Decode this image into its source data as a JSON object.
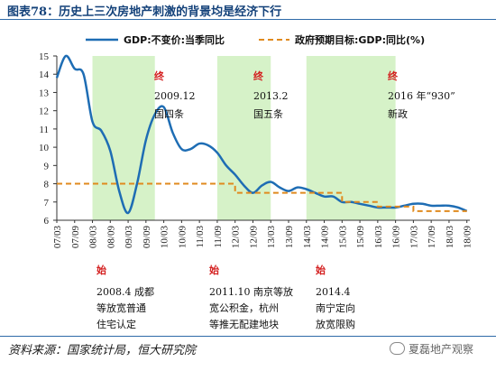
{
  "title": "图表78：历史上三次房地产刺激的背景均是经济下行",
  "source": "资料来源：国家统计局，恒大研究院",
  "watermark": "夏磊地产观察",
  "colors": {
    "gdp_line": "#1e6db4",
    "target_line": "#e08a1e",
    "shade": "#d6f2c8",
    "title": "#14427a",
    "accent_red": "#d42020"
  },
  "chart_data": {
    "type": "line",
    "ylim": [
      6,
      15
    ],
    "yticks": [
      6,
      7,
      8,
      9,
      10,
      11,
      12,
      13,
      14,
      15
    ],
    "grid": false,
    "legend_position": "top",
    "x_tick_labels": [
      "07/03",
      "07/09",
      "08/03",
      "08/09",
      "09/03",
      "09/09",
      "10/03",
      "10/09",
      "11/03",
      "11/09",
      "12/03",
      "12/09",
      "13/03",
      "13/09",
      "14/03",
      "14/09",
      "15/03",
      "15/09",
      "16/03",
      "16/09",
      "17/03",
      "17/09",
      "18/03",
      "18/09"
    ],
    "series": [
      {
        "name": "GDP:不变价:当季同比",
        "style": "solid",
        "x": [
          "07/03",
          "07/06",
          "07/09",
          "07/12",
          "08/03",
          "08/06",
          "08/09",
          "08/12",
          "09/03",
          "09/06",
          "09/09",
          "09/12",
          "10/03",
          "10/06",
          "10/09",
          "10/12",
          "11/03",
          "11/06",
          "11/09",
          "11/12",
          "12/03",
          "12/06",
          "12/09",
          "12/12",
          "13/03",
          "13/06",
          "13/09",
          "13/12",
          "14/03",
          "14/06",
          "14/09",
          "14/12",
          "15/03",
          "15/06",
          "15/09",
          "15/12",
          "16/03",
          "16/06",
          "16/09",
          "16/12",
          "17/03",
          "17/06",
          "17/09",
          "17/12",
          "18/03",
          "18/06",
          "18/09"
        ],
        "values": [
          13.8,
          15.0,
          14.3,
          14.0,
          11.4,
          10.9,
          9.8,
          7.6,
          6.4,
          8.0,
          10.4,
          11.8,
          12.2,
          10.8,
          9.9,
          9.9,
          10.2,
          10.1,
          9.7,
          9.0,
          8.5,
          7.9,
          7.5,
          7.9,
          8.1,
          7.8,
          7.6,
          7.8,
          7.7,
          7.5,
          7.3,
          7.3,
          7.0,
          7.0,
          6.9,
          6.8,
          6.7,
          6.7,
          6.7,
          6.8,
          6.9,
          6.9,
          6.8,
          6.8,
          6.8,
          6.7,
          6.5
        ]
      },
      {
        "name": "政府预期目标:GDP:同比(%)",
        "style": "dashed",
        "x": [
          "07/03",
          "08/03",
          "09/03",
          "10/03",
          "11/03",
          "11/12",
          "12/03",
          "13/03",
          "14/03",
          "14/12",
          "15/03",
          "15/12",
          "16/03",
          "16/12",
          "17/03",
          "17/12",
          "18/03",
          "18/09"
        ],
        "values": [
          8,
          8,
          8,
          8,
          8,
          8,
          7.5,
          7.5,
          7.5,
          7.5,
          7,
          7,
          6.75,
          6.75,
          6.5,
          6.5,
          6.5,
          6.5
        ]
      }
    ],
    "shaded_periods": [
      {
        "start": "08/03",
        "end": "09/12"
      },
      {
        "start": "11/09",
        "end": "13/03"
      },
      {
        "start": "14/03",
        "end": "16/09"
      }
    ],
    "annotations_top": [
      {
        "marker": "终",
        "date_label": "2009.12",
        "text": "国四条"
      },
      {
        "marker": "终",
        "date_label": "2013.2",
        "text": "国五条"
      },
      {
        "marker": "终",
        "date_label": "2016  年“930”",
        "text": "新政"
      }
    ],
    "annotations_bottom": [
      {
        "marker": "始",
        "lines": [
          "2008.4  成都",
          "等放宽普通",
          "住宅认定"
        ]
      },
      {
        "marker": "始",
        "lines": [
          "2011.10 南京等放",
          "宽公积金，杭州",
          "等推无配建地块"
        ]
      },
      {
        "marker": "始",
        "lines": [
          "2014.4",
          "南宁定向",
          "放宽限购"
        ]
      }
    ]
  }
}
